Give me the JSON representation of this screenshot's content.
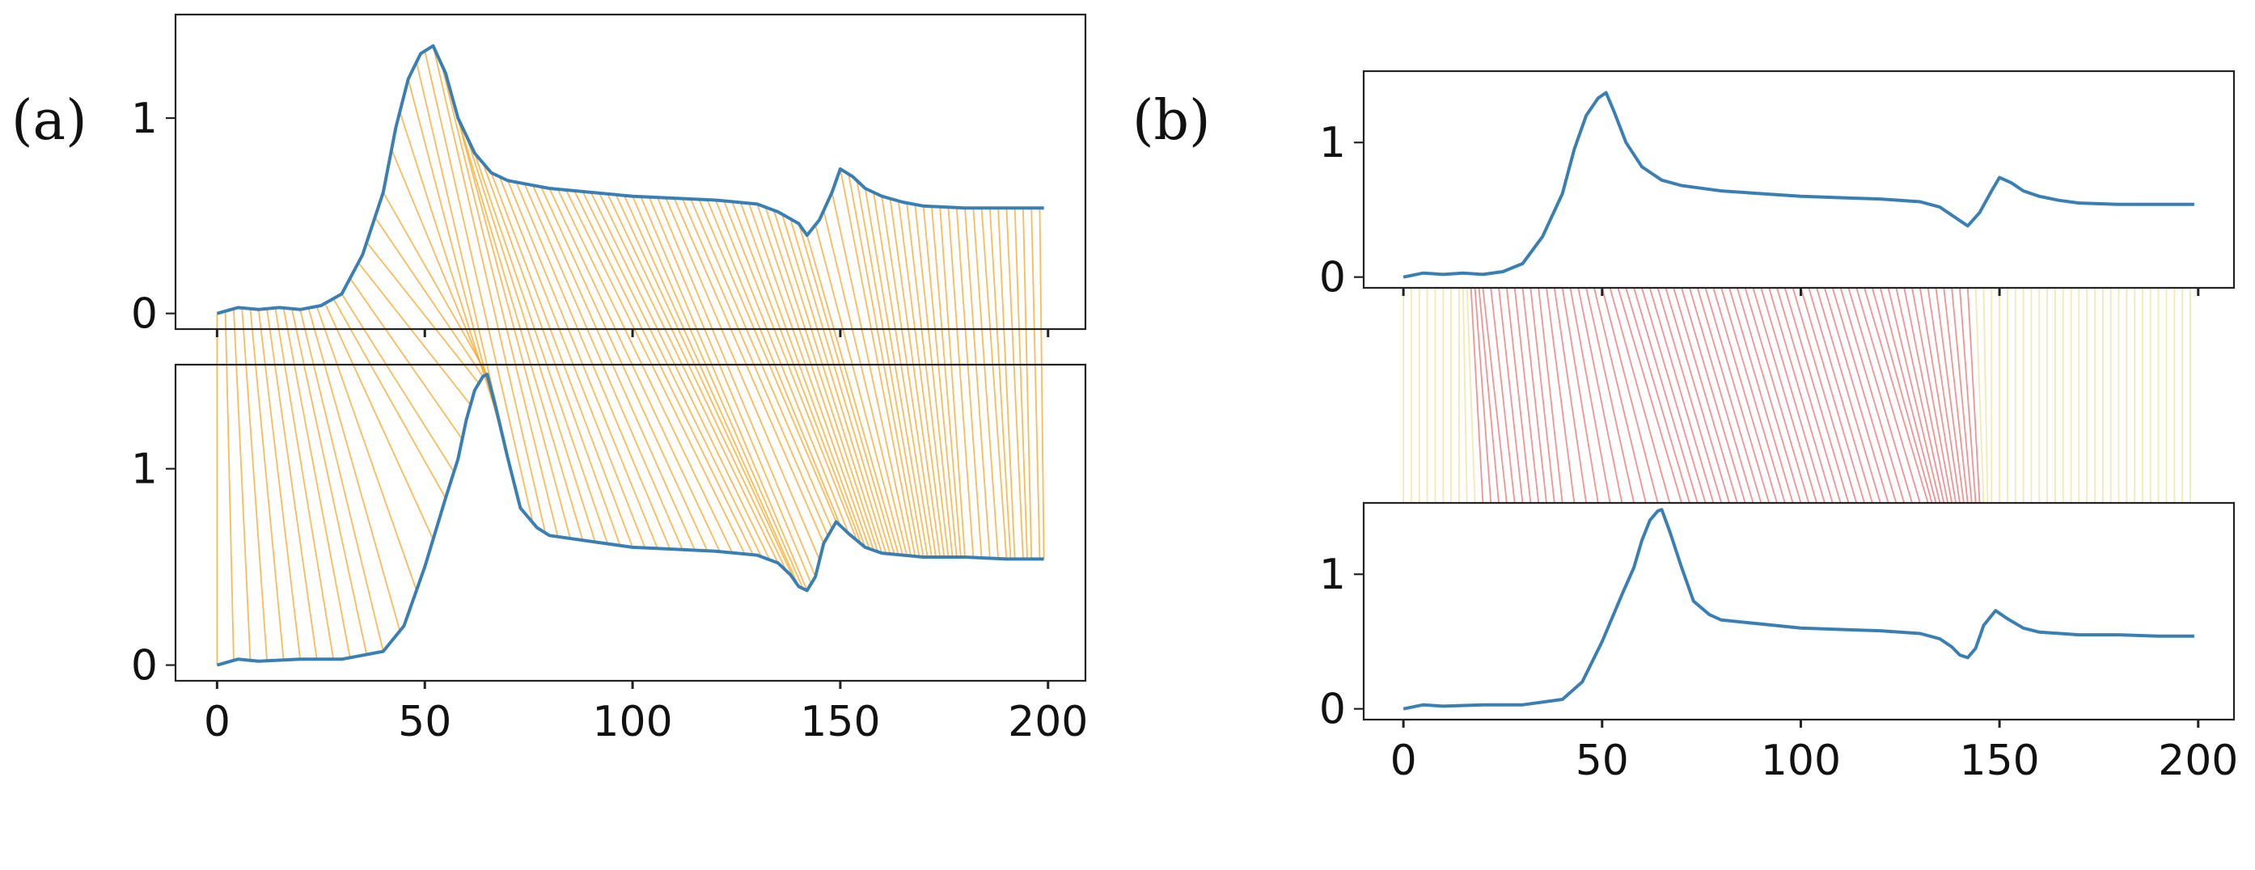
{
  "panels": [
    {
      "id": "a",
      "label": "(a)"
    },
    {
      "id": "b",
      "label": "(b)"
    }
  ],
  "colors": {
    "signal": "#3a7fb4",
    "warp_a": "#f5a623",
    "warp_b_neutral": "#f0e6a8",
    "warp_b_forward": "#f08080",
    "warp_b_backward": "#9ec9ee"
  },
  "chart_data": [
    {
      "type": "line",
      "panel": "a",
      "title": "",
      "series": [
        {
          "subplot": "top",
          "x": [
            0,
            5,
            10,
            15,
            20,
            25,
            30,
            35,
            40,
            43,
            46,
            49,
            52,
            55,
            58,
            62,
            66,
            70,
            75,
            80,
            90,
            100,
            110,
            120,
            130,
            135,
            140,
            142,
            145,
            148,
            150,
            153,
            156,
            160,
            165,
            170,
            180,
            190,
            199
          ],
          "y": [
            0.0,
            0.03,
            0.02,
            0.03,
            0.02,
            0.04,
            0.1,
            0.3,
            0.62,
            0.95,
            1.2,
            1.33,
            1.37,
            1.23,
            1.0,
            0.82,
            0.72,
            0.68,
            0.66,
            0.64,
            0.62,
            0.6,
            0.59,
            0.58,
            0.56,
            0.52,
            0.46,
            0.4,
            0.48,
            0.62,
            0.74,
            0.7,
            0.64,
            0.6,
            0.57,
            0.55,
            0.54,
            0.54,
            0.54
          ]
        },
        {
          "subplot": "bottom",
          "x": [
            0,
            5,
            10,
            20,
            30,
            40,
            45,
            50,
            55,
            58,
            60,
            62,
            64,
            65,
            67,
            70,
            73,
            77,
            80,
            90,
            100,
            110,
            120,
            130,
            135,
            138,
            140,
            142,
            144,
            146,
            149,
            152,
            156,
            160,
            170,
            180,
            190,
            199
          ],
          "y": [
            0.0,
            0.03,
            0.02,
            0.03,
            0.03,
            0.07,
            0.2,
            0.5,
            0.85,
            1.05,
            1.25,
            1.4,
            1.47,
            1.48,
            1.32,
            1.05,
            0.8,
            0.7,
            0.66,
            0.63,
            0.6,
            0.59,
            0.58,
            0.56,
            0.52,
            0.46,
            0.4,
            0.38,
            0.45,
            0.62,
            0.73,
            0.67,
            0.6,
            0.57,
            0.55,
            0.55,
            0.54,
            0.54
          ]
        }
      ],
      "warping_path": {
        "top_x": [
          0,
          2,
          4,
          6,
          8,
          10,
          12,
          14,
          16,
          18,
          20,
          22,
          24,
          26,
          28,
          30,
          32,
          34,
          36,
          38,
          40,
          42,
          44,
          46,
          48,
          50,
          52,
          54,
          56,
          58,
          60,
          62,
          64,
          66,
          68,
          70,
          72,
          74,
          76,
          78,
          80,
          82,
          84,
          86,
          88,
          90,
          92,
          94,
          96,
          98,
          100,
          102,
          104,
          106,
          108,
          110,
          112,
          114,
          116,
          118,
          120,
          122,
          124,
          126,
          128,
          130,
          132,
          134,
          136,
          138,
          140,
          142,
          144,
          146,
          148,
          150,
          152,
          154,
          156,
          158,
          160,
          162,
          164,
          166,
          168,
          170,
          172,
          174,
          176,
          178,
          180,
          182,
          184,
          186,
          188,
          190,
          192,
          194,
          196,
          198
        ],
        "bottom_x": [
          0,
          4,
          8,
          12,
          16,
          20,
          24,
          28,
          32,
          36,
          40,
          44,
          48,
          52,
          55,
          57,
          59,
          61,
          63,
          64,
          65,
          66,
          68,
          70,
          73,
          76,
          79,
          82,
          85,
          88,
          91,
          94,
          97,
          100,
          103,
          106,
          109,
          112,
          115,
          118,
          121,
          124,
          127,
          129,
          131,
          133,
          135,
          137,
          139,
          140,
          141,
          142,
          143,
          144,
          145,
          146,
          147,
          148,
          149,
          150,
          152,
          154,
          155,
          156,
          157,
          158,
          159,
          160,
          161,
          162,
          163,
          164,
          165,
          166,
          167,
          168,
          169,
          170,
          171,
          172,
          173,
          174,
          175,
          176,
          177,
          178,
          179,
          180,
          182,
          184,
          186,
          188,
          190,
          191,
          192,
          194,
          195,
          196,
          198,
          199
        ]
      },
      "x_ticks": [
        "0",
        "50",
        "100",
        "150",
        "200"
      ],
      "y_ticks": [
        "0",
        "1"
      ],
      "xlim": [
        -10,
        209
      ],
      "ylim": [
        -0.08,
        1.53
      ]
    },
    {
      "type": "line",
      "panel": "b",
      "title": "",
      "series": [
        {
          "subplot": "top",
          "x": [
            0,
            5,
            10,
            15,
            20,
            25,
            30,
            35,
            40,
            43,
            46,
            49,
            51,
            53,
            56,
            60,
            65,
            70,
            75,
            80,
            90,
            100,
            110,
            120,
            130,
            135,
            140,
            142,
            145,
            148,
            150,
            153,
            156,
            160,
            165,
            170,
            180,
            190,
            199
          ],
          "y": [
            0.0,
            0.03,
            0.02,
            0.03,
            0.02,
            0.04,
            0.1,
            0.3,
            0.62,
            0.95,
            1.2,
            1.33,
            1.37,
            1.23,
            1.0,
            0.82,
            0.72,
            0.68,
            0.66,
            0.64,
            0.62,
            0.6,
            0.59,
            0.58,
            0.56,
            0.52,
            0.42,
            0.38,
            0.48,
            0.64,
            0.74,
            0.7,
            0.64,
            0.6,
            0.57,
            0.55,
            0.54,
            0.54,
            0.54
          ]
        },
        {
          "subplot": "bottom",
          "x": [
            0,
            5,
            10,
            20,
            30,
            40,
            45,
            50,
            55,
            58,
            60,
            62,
            64,
            65,
            67,
            70,
            73,
            77,
            80,
            90,
            100,
            110,
            120,
            130,
            135,
            138,
            140,
            142,
            144,
            146,
            149,
            152,
            156,
            160,
            170,
            180,
            190,
            199
          ],
          "y": [
            0.0,
            0.03,
            0.02,
            0.03,
            0.03,
            0.07,
            0.2,
            0.5,
            0.85,
            1.05,
            1.25,
            1.4,
            1.47,
            1.48,
            1.32,
            1.05,
            0.8,
            0.7,
            0.66,
            0.63,
            0.6,
            0.59,
            0.58,
            0.56,
            0.52,
            0.46,
            0.4,
            0.38,
            0.45,
            0.62,
            0.73,
            0.67,
            0.6,
            0.57,
            0.55,
            0.55,
            0.54,
            0.54
          ]
        }
      ],
      "warping_path": {
        "top_x": [
          0,
          2,
          4,
          6,
          8,
          10,
          12,
          14,
          15,
          16,
          17,
          18,
          19,
          20,
          22,
          24,
          26,
          28,
          30,
          32,
          34,
          36,
          38,
          40,
          42,
          44,
          46,
          48,
          50,
          52,
          54,
          56,
          58,
          60,
          62,
          64,
          66,
          68,
          70,
          72,
          74,
          76,
          78,
          80,
          82,
          84,
          86,
          88,
          90,
          92,
          94,
          96,
          98,
          100,
          102,
          104,
          106,
          108,
          110,
          112,
          114,
          116,
          118,
          120,
          122,
          124,
          126,
          128,
          130,
          132,
          134,
          136,
          138,
          140,
          142,
          144,
          146,
          148,
          150,
          152,
          154,
          156,
          158,
          160,
          162,
          164,
          166,
          168,
          170,
          172,
          174,
          176,
          178,
          180,
          182,
          184,
          186,
          188,
          190,
          192,
          194,
          196,
          198
        ],
        "bottom_x": [
          0,
          2,
          4,
          6,
          8,
          10,
          12,
          14,
          16,
          18,
          20,
          22,
          24,
          26,
          28,
          30,
          32,
          34,
          36,
          38,
          40,
          43,
          46,
          49,
          52,
          55,
          58,
          61,
          64,
          67,
          70,
          72,
          74,
          76,
          78,
          80,
          82,
          84,
          86,
          88,
          90,
          92,
          94,
          96,
          98,
          100,
          102,
          104,
          106,
          108,
          110,
          112,
          114,
          116,
          118,
          120,
          122,
          124,
          126,
          128,
          130,
          132,
          133,
          134,
          135,
          136,
          137,
          138,
          139,
          140,
          141,
          142,
          143,
          144,
          145,
          146,
          147,
          148,
          150,
          152,
          154,
          156,
          158,
          160,
          162,
          164,
          166,
          168,
          170,
          172,
          174,
          176,
          178,
          180,
          182,
          184,
          186,
          188,
          190,
          192,
          194,
          196,
          198
        ]
      },
      "x_ticks": [
        "0",
        "50",
        "100",
        "150",
        "200"
      ],
      "y_ticks": [
        "0",
        "1"
      ],
      "xlim": [
        -10,
        209
      ],
      "ylim": [
        -0.08,
        1.53
      ]
    }
  ]
}
